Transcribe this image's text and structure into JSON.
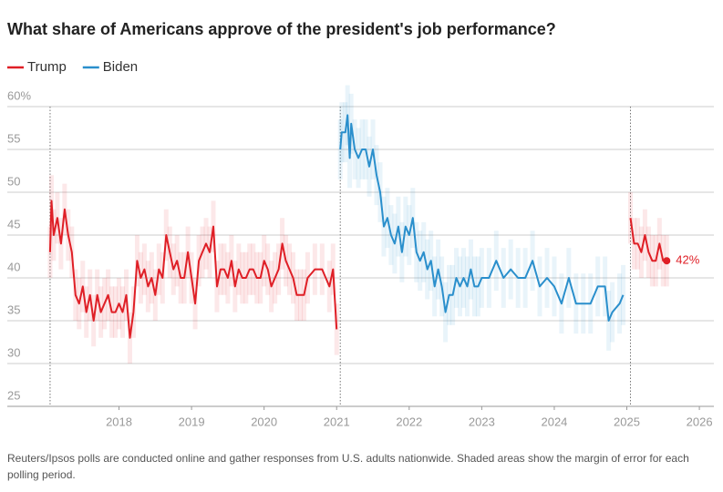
{
  "chart_data": {
    "type": "line",
    "title": "What share of Americans approve of the president's job performance?",
    "note": "Reuters/Ipsos polls are conducted online and gather responses from U.S. adults nationwide. Shaded areas show the margin of error for each polling period.",
    "xlim": [
      2016.46,
      2026.2
    ],
    "xticks": [
      2018,
      2019,
      2020,
      2021,
      2022,
      2023,
      2024,
      2025,
      2026
    ],
    "ylim": [
      25,
      60
    ],
    "yticks": [
      25,
      30,
      35,
      40,
      45,
      50,
      {
        "value": 60,
        "label": "60%"
      },
      55
    ],
    "grid": true,
    "vlines": [
      2017.05,
      2021.05,
      2025.05
    ],
    "series": [
      {
        "name": "Trump",
        "color": "#df1f26",
        "margin": 3,
        "x": [
          2017.05,
          2017.07,
          2017.1,
          2017.15,
          2017.2,
          2017.25,
          2017.3,
          2017.35,
          2017.4,
          2017.45,
          2017.5,
          2017.55,
          2017.6,
          2017.65,
          2017.7,
          2017.75,
          2017.8,
          2017.85,
          2017.9,
          2017.95,
          2018.0,
          2018.05,
          2018.1,
          2018.15,
          2018.2,
          2018.25,
          2018.3,
          2018.35,
          2018.4,
          2018.45,
          2018.5,
          2018.55,
          2018.6,
          2018.65,
          2018.7,
          2018.75,
          2018.8,
          2018.85,
          2018.9,
          2018.95,
          2019.0,
          2019.05,
          2019.1,
          2019.15,
          2019.2,
          2019.25,
          2019.3,
          2019.35,
          2019.4,
          2019.45,
          2019.5,
          2019.55,
          2019.6,
          2019.65,
          2019.7,
          2019.75,
          2019.8,
          2019.85,
          2019.9,
          2019.95,
          2020.0,
          2020.05,
          2020.1,
          2020.15,
          2020.2,
          2020.25,
          2020.3,
          2020.35,
          2020.4,
          2020.45,
          2020.5,
          2020.55,
          2020.6,
          2020.7,
          2020.8,
          2020.9,
          2020.95,
          2021.0,
          2023.0,
          2025.05,
          2025.1,
          2025.15,
          2025.2,
          2025.25,
          2025.3,
          2025.35,
          2025.4,
          2025.45,
          2025.5,
          2025.55
        ],
        "values": [
          43,
          49,
          45,
          47,
          44,
          48,
          45,
          43,
          38,
          37,
          39,
          36,
          38,
          35,
          38,
          36,
          37,
          38,
          36,
          36,
          37,
          36,
          38,
          33,
          36,
          42,
          40,
          41,
          39,
          40,
          38,
          41,
          40,
          45,
          43,
          41,
          42,
          40,
          40,
          43,
          40,
          37,
          42,
          43,
          44,
          43,
          46,
          39,
          41,
          41,
          40,
          42,
          39,
          41,
          40,
          40,
          41,
          41,
          40,
          40,
          42,
          41,
          39,
          40,
          41,
          44,
          42,
          41,
          40,
          38,
          38,
          38,
          40,
          41,
          41,
          39,
          41,
          34,
          null,
          47,
          44,
          44,
          43,
          45,
          43,
          42,
          42,
          44,
          42,
          42
        ]
      },
      {
        "name": "Biden",
        "color": "#2a8fcc",
        "margin": 3.5,
        "x": [
          2021.05,
          2021.07,
          2021.12,
          2021.15,
          2021.18,
          2021.2,
          2021.25,
          2021.3,
          2021.35,
          2021.4,
          2021.45,
          2021.5,
          2021.55,
          2021.6,
          2021.65,
          2021.7,
          2021.75,
          2021.8,
          2021.85,
          2021.9,
          2021.95,
          2022.0,
          2022.05,
          2022.1,
          2022.15,
          2022.2,
          2022.25,
          2022.3,
          2022.35,
          2022.4,
          2022.45,
          2022.5,
          2022.55,
          2022.6,
          2022.65,
          2022.7,
          2022.75,
          2022.8,
          2022.85,
          2022.9,
          2022.95,
          2023.0,
          2023.1,
          2023.2,
          2023.3,
          2023.4,
          2023.5,
          2023.6,
          2023.7,
          2023.8,
          2023.9,
          2024.0,
          2024.1,
          2024.2,
          2024.3,
          2024.4,
          2024.5,
          2024.6,
          2024.7,
          2024.75,
          2024.8,
          2024.9,
          2024.95
        ],
        "values": [
          55,
          57,
          57,
          59,
          54,
          58,
          55,
          54,
          55,
          55,
          53,
          55,
          52,
          50,
          46,
          47,
          45,
          44,
          46,
          43,
          46,
          45,
          47,
          43,
          42,
          43,
          41,
          42,
          39,
          41,
          39,
          36,
          38,
          38,
          40,
          39,
          40,
          39,
          41,
          39,
          39,
          40,
          40,
          42,
          40,
          41,
          40,
          40,
          42,
          39,
          40,
          39,
          37,
          40,
          37,
          37,
          37,
          39,
          39,
          35,
          36,
          37,
          38
        ]
      }
    ],
    "annotations": [
      {
        "x": 2025.55,
        "y": 42,
        "label": "42%"
      }
    ]
  }
}
